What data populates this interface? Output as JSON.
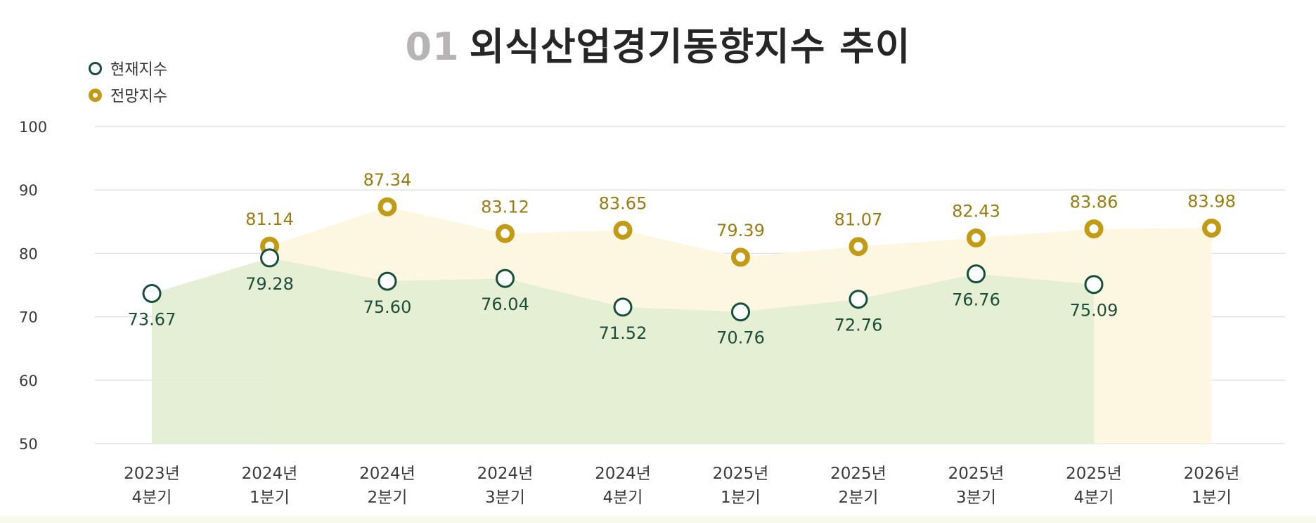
{
  "title": {
    "number": "01",
    "text": "외식산업경기동향지수 추이"
  },
  "legend": [
    {
      "label": "현재지수",
      "color": "#14503a"
    },
    {
      "label": "전망지수",
      "color": "#c29a14"
    }
  ],
  "chart_data": {
    "type": "line",
    "title": "01 외식산업경기동향지수 추이",
    "xlabel": "",
    "ylabel": "",
    "ylim": [
      50,
      100
    ],
    "yticks": [
      50,
      60,
      70,
      80,
      90,
      100
    ],
    "grid": true,
    "legend_position": "top-left",
    "categories": [
      [
        "2023년",
        "4분기"
      ],
      [
        "2024년",
        "1분기"
      ],
      [
        "2024년",
        "2분기"
      ],
      [
        "2024년",
        "3분기"
      ],
      [
        "2024년",
        "4분기"
      ],
      [
        "2025년",
        "1분기"
      ],
      [
        "2025년",
        "2분기"
      ],
      [
        "2025년",
        "3분기"
      ],
      [
        "2025년",
        "4분기"
      ],
      [
        "2026년",
        "1분기"
      ]
    ],
    "series": [
      {
        "name": "현재지수",
        "color": "#14503a",
        "fill": "#e2eed3",
        "values": [
          73.67,
          79.28,
          75.6,
          76.04,
          71.52,
          70.76,
          72.76,
          76.76,
          75.09,
          null
        ],
        "labels": [
          "73.67",
          "79.28",
          "75.60",
          "76.04",
          "71.52",
          "70.76",
          "72.76",
          "76.76",
          "75.09",
          ""
        ]
      },
      {
        "name": "전망지수",
        "color": "#c29a14",
        "fill": "#fdf6e1",
        "values": [
          null,
          81.14,
          87.34,
          83.12,
          83.65,
          79.39,
          81.07,
          82.43,
          83.86,
          83.98
        ],
        "labels": [
          "",
          "81.14",
          "87.34",
          "83.12",
          "83.65",
          "79.39",
          "81.07",
          "82.43",
          "83.86",
          "83.98"
        ]
      }
    ]
  }
}
